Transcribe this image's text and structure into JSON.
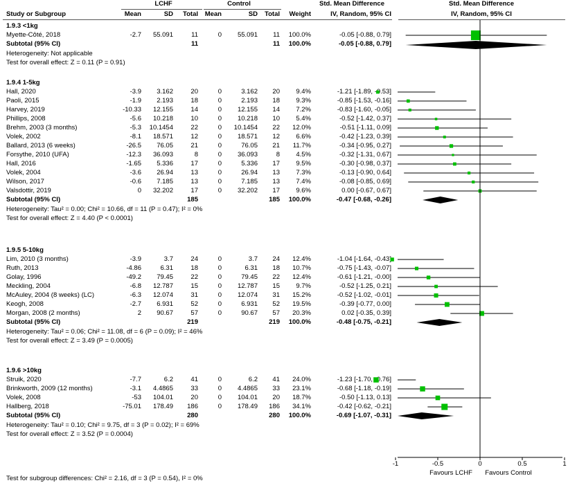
{
  "header": {
    "group1": "LCHF",
    "group2": "Control",
    "effect_title": "Std. Mean Difference",
    "effect_method": "IV, Random, 95% CI",
    "plot_title": "Std. Mean Difference",
    "plot_method": "IV, Random, 95% CI",
    "columns": [
      "Study or Subgroup",
      "Mean",
      "SD",
      "Total",
      "Mean",
      "SD",
      "Total",
      "Weight"
    ]
  },
  "subgroups": [
    {
      "title": "1.9.3 <1kg",
      "studies": [
        {
          "name": "Myette-Côté, 2018",
          "m1": "-2.7",
          "sd1": "55.091",
          "n1": "11",
          "m2": "0",
          "sd2": "55.091",
          "n2": "11",
          "weight": "100.0%",
          "ci": "-0.05 [-0.88, 0.79]",
          "est": -0.05,
          "lo": -0.88,
          "hi": 0.79,
          "w": 100.0
        }
      ],
      "subtotal": {
        "label": "Subtotal (95% CI)",
        "n1": "11",
        "n2": "11",
        "weight": "100.0%",
        "ci": "-0.05 [-0.88, 0.79]",
        "est": -0.05,
        "lo": -0.88,
        "hi": 0.79
      },
      "heterogeneity": "Heterogeneity: Not applicable",
      "overall": "Test for overall effect: Z = 0.11 (P = 0.91)"
    },
    {
      "title": "1.9.4 1-5kg",
      "studies": [
        {
          "name": "Hall, 2020",
          "m1": "-3.9",
          "sd1": "3.162",
          "n1": "20",
          "m2": "0",
          "sd2": "3.162",
          "n2": "20",
          "weight": "9.4%",
          "ci": "-1.21 [-1.89, -0.53]",
          "est": -1.21,
          "lo": -1.89,
          "hi": -0.53,
          "w": 9.4
        },
        {
          "name": "Paoli, 2015",
          "m1": "-1.9",
          "sd1": "2.193",
          "n1": "18",
          "m2": "0",
          "sd2": "2.193",
          "n2": "18",
          "weight": "9.3%",
          "ci": "-0.85 [-1.53, -0.16]",
          "est": -0.85,
          "lo": -1.53,
          "hi": -0.16,
          "w": 9.3
        },
        {
          "name": "Harvey, 2019",
          "m1": "-10.33",
          "sd1": "12.155",
          "n1": "14",
          "m2": "0",
          "sd2": "12.155",
          "n2": "14",
          "weight": "7.2%",
          "ci": "-0.83 [-1.60, -0.05]",
          "est": -0.83,
          "lo": -1.6,
          "hi": -0.05,
          "w": 7.2
        },
        {
          "name": "Phillips, 2008",
          "m1": "-5.6",
          "sd1": "10.218",
          "n1": "10",
          "m2": "0",
          "sd2": "10.218",
          "n2": "10",
          "weight": "5.4%",
          "ci": "-0.52 [-1.42, 0.37]",
          "est": -0.52,
          "lo": -1.42,
          "hi": 0.37,
          "w": 5.4
        },
        {
          "name": "Brehm, 2003 (3 months)",
          "m1": "-5.3",
          "sd1": "10.1454",
          "n1": "22",
          "m2": "0",
          "sd2": "10.1454",
          "n2": "22",
          "weight": "12.0%",
          "ci": "-0.51 [-1.11, 0.09]",
          "est": -0.51,
          "lo": -1.11,
          "hi": 0.09,
          "w": 12.0
        },
        {
          "name": "Volek, 2002",
          "m1": "-8.1",
          "sd1": "18.571",
          "n1": "12",
          "m2": "0",
          "sd2": "18.571",
          "n2": "12",
          "weight": "6.6%",
          "ci": "-0.42 [-1.23, 0.39]",
          "est": -0.42,
          "lo": -1.23,
          "hi": 0.39,
          "w": 6.6
        },
        {
          "name": "Ballard, 2013 (6 weeks)",
          "m1": "-26.5",
          "sd1": "76.05",
          "n1": "21",
          "m2": "0",
          "sd2": "76.05",
          "n2": "21",
          "weight": "11.7%",
          "ci": "-0.34 [-0.95, 0.27]",
          "est": -0.34,
          "lo": -0.95,
          "hi": 0.27,
          "w": 11.7
        },
        {
          "name": "Forsythe, 2010 (UFA)",
          "m1": "-12.3",
          "sd1": "36.093",
          "n1": "8",
          "m2": "0",
          "sd2": "36.093",
          "n2": "8",
          "weight": "4.5%",
          "ci": "-0.32 [-1.31, 0.67]",
          "est": -0.32,
          "lo": -1.31,
          "hi": 0.67,
          "w": 4.5
        },
        {
          "name": "Hall, 2016",
          "m1": "-1.65",
          "sd1": "5.336",
          "n1": "17",
          "m2": "0",
          "sd2": "5.336",
          "n2": "17",
          "weight": "9.5%",
          "ci": "-0.30 [-0.98, 0.37]",
          "est": -0.3,
          "lo": -0.98,
          "hi": 0.37,
          "w": 9.5
        },
        {
          "name": "Volek, 2004",
          "m1": "-3.6",
          "sd1": "26.94",
          "n1": "13",
          "m2": "0",
          "sd2": "26.94",
          "n2": "13",
          "weight": "7.3%",
          "ci": "-0.13 [-0.90, 0.64]",
          "est": -0.13,
          "lo": -0.9,
          "hi": 0.64,
          "w": 7.3
        },
        {
          "name": "Wilson, 2017",
          "m1": "-0.6",
          "sd1": "7.185",
          "n1": "13",
          "m2": "0",
          "sd2": "7.185",
          "n2": "13",
          "weight": "7.4%",
          "ci": "-0.08 [-0.85, 0.69]",
          "est": -0.08,
          "lo": -0.85,
          "hi": 0.69,
          "w": 7.4
        },
        {
          "name": "Valsdottir, 2019",
          "m1": "0",
          "sd1": "32.202",
          "n1": "17",
          "m2": "0",
          "sd2": "32.202",
          "n2": "17",
          "weight": "9.6%",
          "ci": "0.00 [-0.67, 0.67]",
          "est": 0.0,
          "lo": -0.67,
          "hi": 0.67,
          "w": 9.6
        }
      ],
      "subtotal": {
        "label": "Subtotal (95% CI)",
        "n1": "185",
        "n2": "185",
        "weight": "100.0%",
        "ci": "-0.47 [-0.68, -0.26]",
        "est": -0.47,
        "lo": -0.68,
        "hi": -0.26
      },
      "heterogeneity": "Heterogeneity: Tau² = 0.00; Chi² = 10.66, df = 11 (P = 0.47); I² = 0%",
      "overall": "Test for overall effect: Z = 4.40 (P < 0.0001)"
    },
    {
      "title": "1.9.5 5-10kg",
      "studies": [
        {
          "name": "Lim, 2010 (3 months)",
          "m1": "-3.9",
          "sd1": "3.7",
          "n1": "24",
          "m2": "0",
          "sd2": "3.7",
          "n2": "24",
          "weight": "12.4%",
          "ci": "-1.04 [-1.64, -0.43]",
          "est": -1.04,
          "lo": -1.64,
          "hi": -0.43,
          "w": 12.4
        },
        {
          "name": "Ruth, 2013",
          "m1": "-4.86",
          "sd1": "6.31",
          "n1": "18",
          "m2": "0",
          "sd2": "6.31",
          "n2": "18",
          "weight": "10.7%",
          "ci": "-0.75 [-1.43, -0.07]",
          "est": -0.75,
          "lo": -1.43,
          "hi": -0.07,
          "w": 10.7
        },
        {
          "name": "Golay, 1996",
          "m1": "-49.2",
          "sd1": "79.45",
          "n1": "22",
          "m2": "0",
          "sd2": "79.45",
          "n2": "22",
          "weight": "12.4%",
          "ci": "-0.61 [-1.21, -0.00]",
          "est": -0.61,
          "lo": -1.21,
          "hi": -0.0,
          "w": 12.4
        },
        {
          "name": "Meckling, 2004",
          "m1": "-6.8",
          "sd1": "12.787",
          "n1": "15",
          "m2": "0",
          "sd2": "12.787",
          "n2": "15",
          "weight": "9.7%",
          "ci": "-0.52 [-1.25, 0.21]",
          "est": -0.52,
          "lo": -1.25,
          "hi": 0.21,
          "w": 9.7
        },
        {
          "name": "McAuley, 2004 (8 weeks) (LC)",
          "m1": "-6.3",
          "sd1": "12.074",
          "n1": "31",
          "m2": "0",
          "sd2": "12.074",
          "n2": "31",
          "weight": "15.2%",
          "ci": "-0.52 [-1.02, -0.01]",
          "est": -0.52,
          "lo": -1.02,
          "hi": -0.01,
          "w": 15.2
        },
        {
          "name": "Keogh, 2008",
          "m1": "-2.7",
          "sd1": "6.931",
          "n1": "52",
          "m2": "0",
          "sd2": "6.931",
          "n2": "52",
          "weight": "19.5%",
          "ci": "-0.39 [-0.77, 0.00]",
          "est": -0.39,
          "lo": -0.77,
          "hi": 0.0,
          "w": 19.5
        },
        {
          "name": "Morgan, 2008 (2 months)",
          "m1": "2",
          "sd1": "90.67",
          "n1": "57",
          "m2": "0",
          "sd2": "90.67",
          "n2": "57",
          "weight": "20.3%",
          "ci": "0.02 [-0.35, 0.39]",
          "est": 0.02,
          "lo": -0.35,
          "hi": 0.39,
          "w": 20.3
        }
      ],
      "subtotal": {
        "label": "Subtotal (95% CI)",
        "n1": "219",
        "n2": "219",
        "weight": "100.0%",
        "ci": "-0.48 [-0.75, -0.21]",
        "est": -0.48,
        "lo": -0.75,
        "hi": -0.21
      },
      "heterogeneity": "Heterogeneity: Tau² = 0.06; Chi² = 11.08, df = 6 (P = 0.09); I² = 46%",
      "overall": "Test for overall effect: Z = 3.49 (P = 0.0005)"
    },
    {
      "title": "1.9.6 >10kg",
      "studies": [
        {
          "name": "Struik, 2020",
          "m1": "-7.7",
          "sd1": "6.2",
          "n1": "41",
          "m2": "0",
          "sd2": "6.2",
          "n2": "41",
          "weight": "24.0%",
          "ci": "-1.23 [-1.70, -0.76]",
          "est": -1.23,
          "lo": -1.7,
          "hi": -0.76,
          "w": 24.0
        },
        {
          "name": "Brinkworth, 2009 (12 months)",
          "m1": "-3.1",
          "sd1": "4.4865",
          "n1": "33",
          "m2": "0",
          "sd2": "4.4865",
          "n2": "33",
          "weight": "23.1%",
          "ci": "-0.68 [-1.18, -0.19]",
          "est": -0.68,
          "lo": -1.18,
          "hi": -0.19,
          "w": 23.1
        },
        {
          "name": "Volek, 2008",
          "m1": "-53",
          "sd1": "104.01",
          "n1": "20",
          "m2": "0",
          "sd2": "104.01",
          "n2": "20",
          "weight": "18.7%",
          "ci": "-0.50 [-1.13, 0.13]",
          "est": -0.5,
          "lo": -1.13,
          "hi": 0.13,
          "w": 18.7
        },
        {
          "name": "Hallberg, 2018",
          "m1": "-75.01",
          "sd1": "178.49",
          "n1": "186",
          "m2": "0",
          "sd2": "178.49",
          "n2": "186",
          "weight": "34.1%",
          "ci": "-0.42 [-0.62, -0.21]",
          "est": -0.42,
          "lo": -0.62,
          "hi": -0.21,
          "w": 34.1
        }
      ],
      "subtotal": {
        "label": "Subtotal (95% CI)",
        "n1": "280",
        "n2": "280",
        "weight": "100.0%",
        "ci": "-0.69 [-1.07, -0.31]",
        "est": -0.69,
        "lo": -1.07,
        "hi": -0.31
      },
      "heterogeneity": "Heterogeneity: Tau² = 0.10; Chi² = 9.75, df = 3 (P = 0.02); I² = 69%",
      "overall": "Test for overall effect: Z = 3.52 (P = 0.0004)"
    }
  ],
  "axis": {
    "ticks": [
      -1,
      -0.5,
      0,
      0.5,
      1
    ],
    "tick_labels": [
      "-1",
      "-0.5",
      "0",
      "0.5",
      "1"
    ],
    "range": [
      -2,
      2
    ],
    "left_label": "Favours LCHF",
    "right_label": "Favours Control"
  },
  "footer": {
    "subgroup_test": "Test for subgroup differences: Chi² = 2.16, df = 3 (P = 0.54), I² = 0%"
  },
  "colors": {
    "square": "#00c000",
    "diamond": "#000000",
    "line": "#000000"
  },
  "chart_data": {
    "type": "forest",
    "x_measure": "Std. Mean Difference, IV, Random, 95% CI",
    "xlim": [
      -2,
      2
    ],
    "xticks": [
      -1,
      -0.5,
      0,
      0.5,
      1
    ],
    "left_label": "Favours LCHF",
    "right_label": "Favours Control"
  }
}
